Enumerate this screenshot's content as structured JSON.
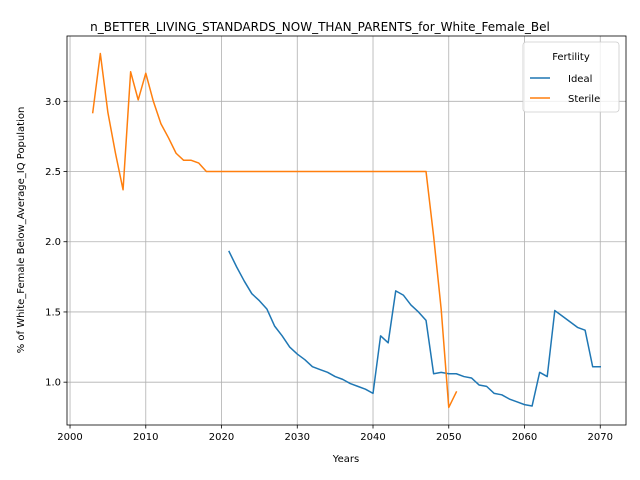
{
  "chart_data": {
    "type": "line",
    "title": "n_BETTER_LIVING_STANDARDS_NOW_THAN_PARENTS_for_White_Female_Bel",
    "xlabel": "Years",
    "ylabel": "% of White_Female Below_Average_IQ Population",
    "xlim": [
      1999.6,
      2073.4
    ],
    "ylim": [
      0.695,
      3.465
    ],
    "xticks": [
      2000,
      2010,
      2020,
      2030,
      2040,
      2050,
      2060,
      2070
    ],
    "yticks": [
      1.0,
      1.5,
      2.0,
      2.5,
      3.0
    ],
    "grid": true,
    "legend": {
      "title": "Fertility",
      "placement": "top-right"
    },
    "series": [
      {
        "name": "Ideal",
        "color": "#1f77b4",
        "x": [
          2021,
          2022,
          2023,
          2024,
          2025,
          2026,
          2027,
          2028,
          2029,
          2030,
          2031,
          2032,
          2033,
          2034,
          2035,
          2036,
          2037,
          2038,
          2039,
          2040,
          2041,
          2042,
          2043,
          2044,
          2045,
          2046,
          2047,
          2048,
          2049,
          2050,
          2051,
          2052,
          2053,
          2054,
          2055,
          2056,
          2057,
          2058,
          2059,
          2060,
          2061,
          2062,
          2063,
          2064,
          2065,
          2066,
          2067,
          2068,
          2069,
          2070
        ],
        "values": [
          1.93,
          1.82,
          1.72,
          1.63,
          1.58,
          1.52,
          1.4,
          1.33,
          1.25,
          1.2,
          1.16,
          1.11,
          1.09,
          1.07,
          1.04,
          1.02,
          0.99,
          0.97,
          0.95,
          0.92,
          1.33,
          1.28,
          1.65,
          1.62,
          1.55,
          1.5,
          1.44,
          1.06,
          1.07,
          1.06,
          1.06,
          1.04,
          1.03,
          0.98,
          0.97,
          0.92,
          0.91,
          0.88,
          0.86,
          0.84,
          0.83,
          1.07,
          1.04,
          1.51,
          1.47,
          1.43,
          1.39,
          1.37,
          1.11,
          1.11
        ]
      },
      {
        "name": "Sterile",
        "color": "#ff7f0e",
        "x": [
          2003,
          2004,
          2005,
          2006,
          2007,
          2008,
          2009,
          2010,
          2011,
          2012,
          2013,
          2014,
          2015,
          2016,
          2017,
          2018,
          2019,
          2020,
          2025,
          2030,
          2035,
          2040,
          2045,
          2046,
          2047,
          2048,
          2049,
          2050,
          2051
        ],
        "values": [
          2.92,
          3.34,
          2.92,
          2.63,
          2.37,
          3.21,
          3.01,
          3.2,
          3.0,
          2.84,
          2.74,
          2.63,
          2.58,
          2.58,
          2.56,
          2.5,
          2.5,
          2.5,
          2.5,
          2.5,
          2.5,
          2.5,
          2.5,
          2.5,
          2.5,
          2.04,
          1.52,
          0.82,
          0.93
        ]
      }
    ]
  }
}
